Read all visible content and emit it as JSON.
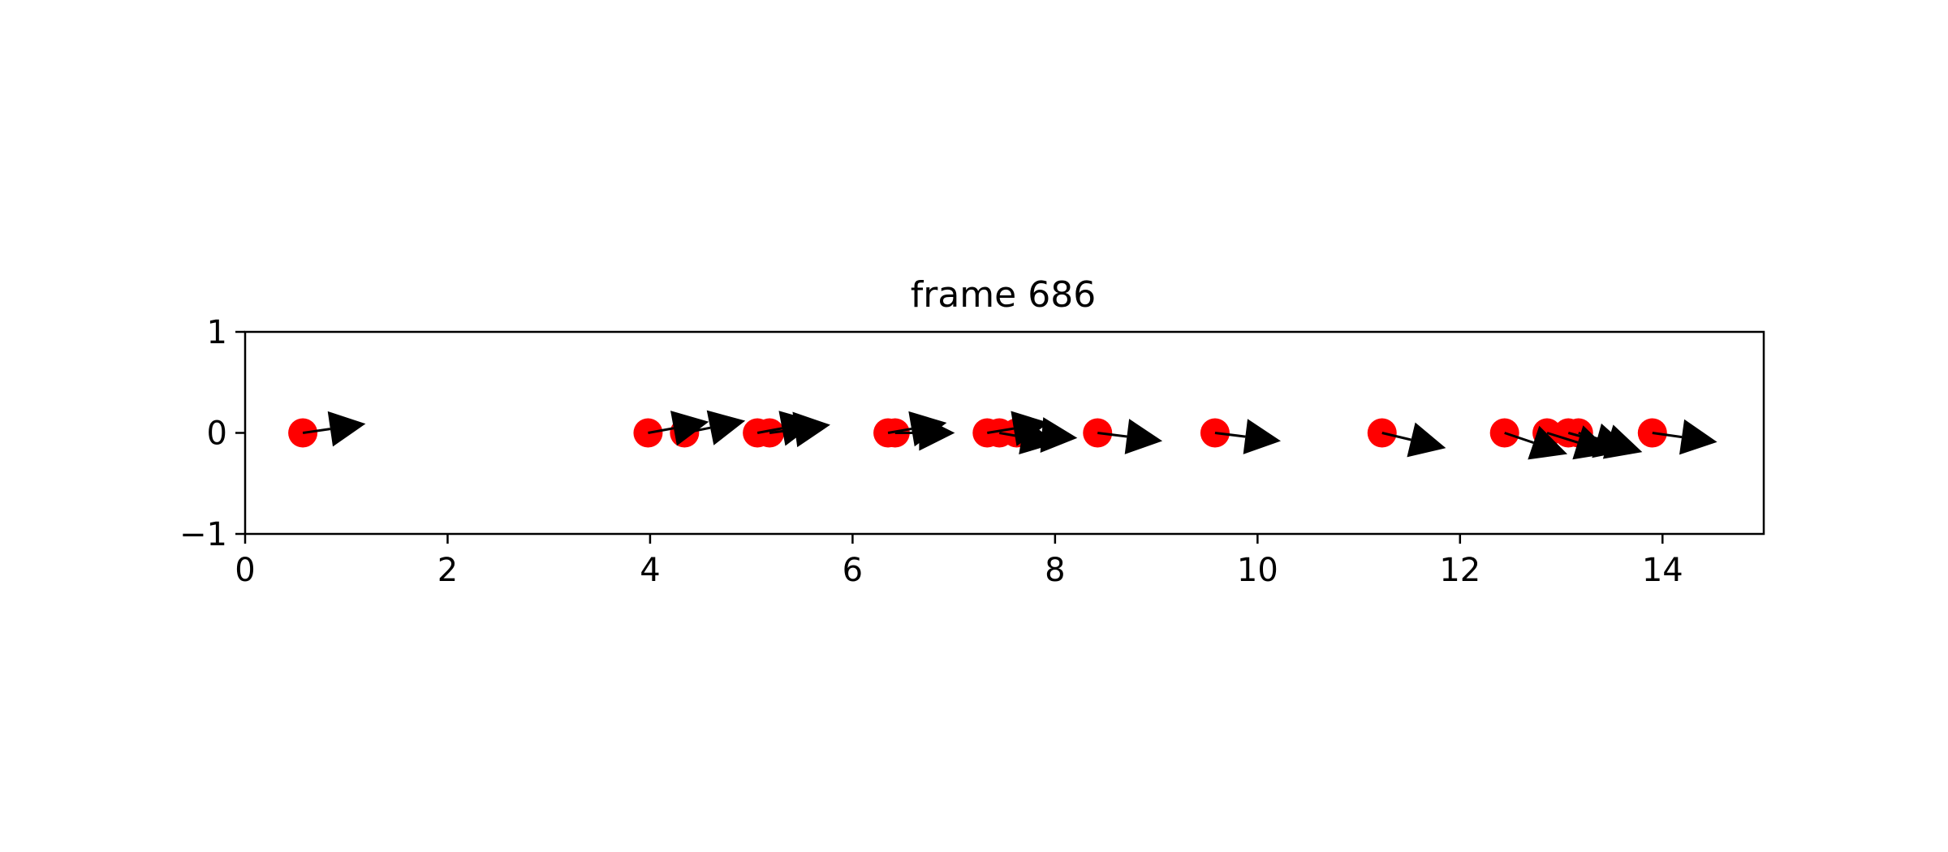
{
  "chart_data": {
    "type": "scatter",
    "title": "frame 686",
    "xlabel": "",
    "ylabel": "",
    "xlim": [
      0,
      15
    ],
    "ylim": [
      -1,
      1
    ],
    "x_ticks": [
      0,
      2,
      4,
      6,
      8,
      10,
      12,
      14
    ],
    "y_ticks": [
      1,
      0,
      -1
    ],
    "x_tick_labels": [
      "0",
      "2",
      "4",
      "6",
      "8",
      "10",
      "12",
      "14"
    ],
    "y_tick_labels": [
      "1",
      "0",
      "−1"
    ],
    "grid": false,
    "legend": "none",
    "point_color": "#ff0000",
    "arrow_color": "#000000",
    "points": [
      {
        "x": 0.57,
        "y": 0,
        "dx": 0.62,
        "dy": 0.09
      },
      {
        "x": 3.98,
        "y": 0,
        "dx": 0.6,
        "dy": 0.11
      },
      {
        "x": 4.34,
        "y": 0,
        "dx": 0.6,
        "dy": 0.12
      },
      {
        "x": 5.06,
        "y": 0,
        "dx": 0.59,
        "dy": 0.11
      },
      {
        "x": 5.18,
        "y": 0,
        "dx": 0.6,
        "dy": 0.08
      },
      {
        "x": 6.35,
        "y": 0,
        "dx": 0.58,
        "dy": 0.1
      },
      {
        "x": 6.42,
        "y": 0,
        "dx": 0.59,
        "dy": 0.0
      },
      {
        "x": 7.33,
        "y": 0,
        "dx": 0.61,
        "dy": 0.1
      },
      {
        "x": 7.45,
        "y": 0,
        "dx": 0.57,
        "dy": -0.1
      },
      {
        "x": 7.62,
        "y": 0,
        "dx": 0.6,
        "dy": -0.05
      },
      {
        "x": 8.42,
        "y": 0,
        "dx": 0.64,
        "dy": -0.08
      },
      {
        "x": 9.58,
        "y": 0,
        "dx": 0.65,
        "dy": -0.08
      },
      {
        "x": 11.23,
        "y": 0,
        "dx": 0.63,
        "dy": -0.15
      },
      {
        "x": 12.44,
        "y": 0,
        "dx": 0.62,
        "dy": -0.21
      },
      {
        "x": 12.86,
        "y": 0,
        "dx": 0.64,
        "dy": -0.2
      },
      {
        "x": 13.07,
        "y": 0,
        "dx": 0.62,
        "dy": -0.17
      },
      {
        "x": 13.17,
        "y": 0,
        "dx": 0.63,
        "dy": -0.19
      },
      {
        "x": 13.9,
        "y": 0,
        "dx": 0.64,
        "dy": -0.09
      }
    ]
  }
}
